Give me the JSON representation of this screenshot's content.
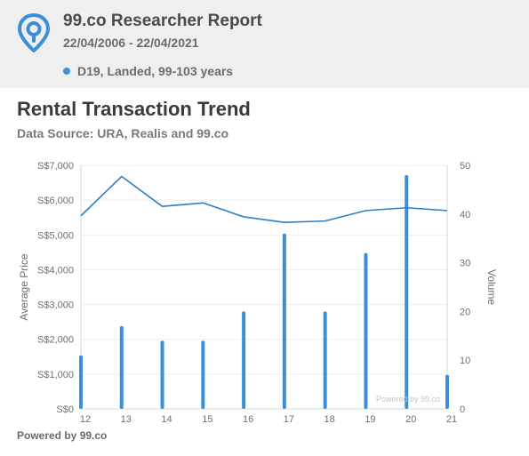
{
  "header": {
    "title": "99.co Researcher Report",
    "date_range": "22/04/2006 - 22/04/2021",
    "legend_label": "D19, Landed, 99-103 years",
    "legend_color": "#3a8fd8",
    "logo_icon": "location-pin-icon"
  },
  "chart_title": "Rental Transaction Trend",
  "chart_subtitle": "Data Source: URA, Realis and 99.co",
  "footer": "Powered by 99.co",
  "colors": {
    "bar": "#3a8fd8",
    "line": "#2f7fc4",
    "axis_text": "#6f6f6f",
    "grid": "#ececec",
    "watermark": "#c4c4c4"
  },
  "chart_data": {
    "type": "bar+line",
    "categories": [
      "12",
      "13",
      "14",
      "15",
      "16",
      "17",
      "18",
      "19",
      "20",
      "21"
    ],
    "ylabel_left": "Average Price",
    "ylabel_right": "Volume",
    "ylim_left": [
      0,
      7000
    ],
    "ylim_right": [
      0,
      50
    ],
    "left_ticks": [
      "S$0",
      "S$1,000",
      "S$2,000",
      "S$3,000",
      "S$4,000",
      "S$5,000",
      "S$6,000",
      "S$7,000"
    ],
    "right_ticks": [
      "0",
      "10",
      "20",
      "30",
      "40",
      "50"
    ],
    "volume": [
      11,
      17,
      14,
      14,
      20,
      36,
      20,
      32,
      48,
      7
    ],
    "average_price": [
      5550,
      6680,
      5820,
      5920,
      5520,
      5360,
      5400,
      5700,
      5780,
      5700
    ],
    "grid": true,
    "watermark": "Powered by 99.co"
  }
}
